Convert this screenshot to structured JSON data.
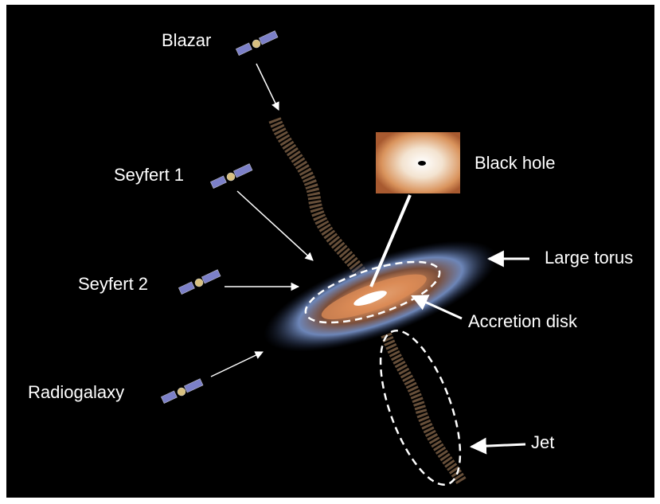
{
  "labels": {
    "blazar": "Blazar",
    "seyfert1": "Seyfert 1",
    "seyfert2": "Seyfert 2",
    "radiogalaxy": "Radiogalaxy",
    "black_hole": "Black hole",
    "large_torus": "Large torus",
    "accretion_disk": "Accretion disk",
    "jet": "Jet"
  }
}
